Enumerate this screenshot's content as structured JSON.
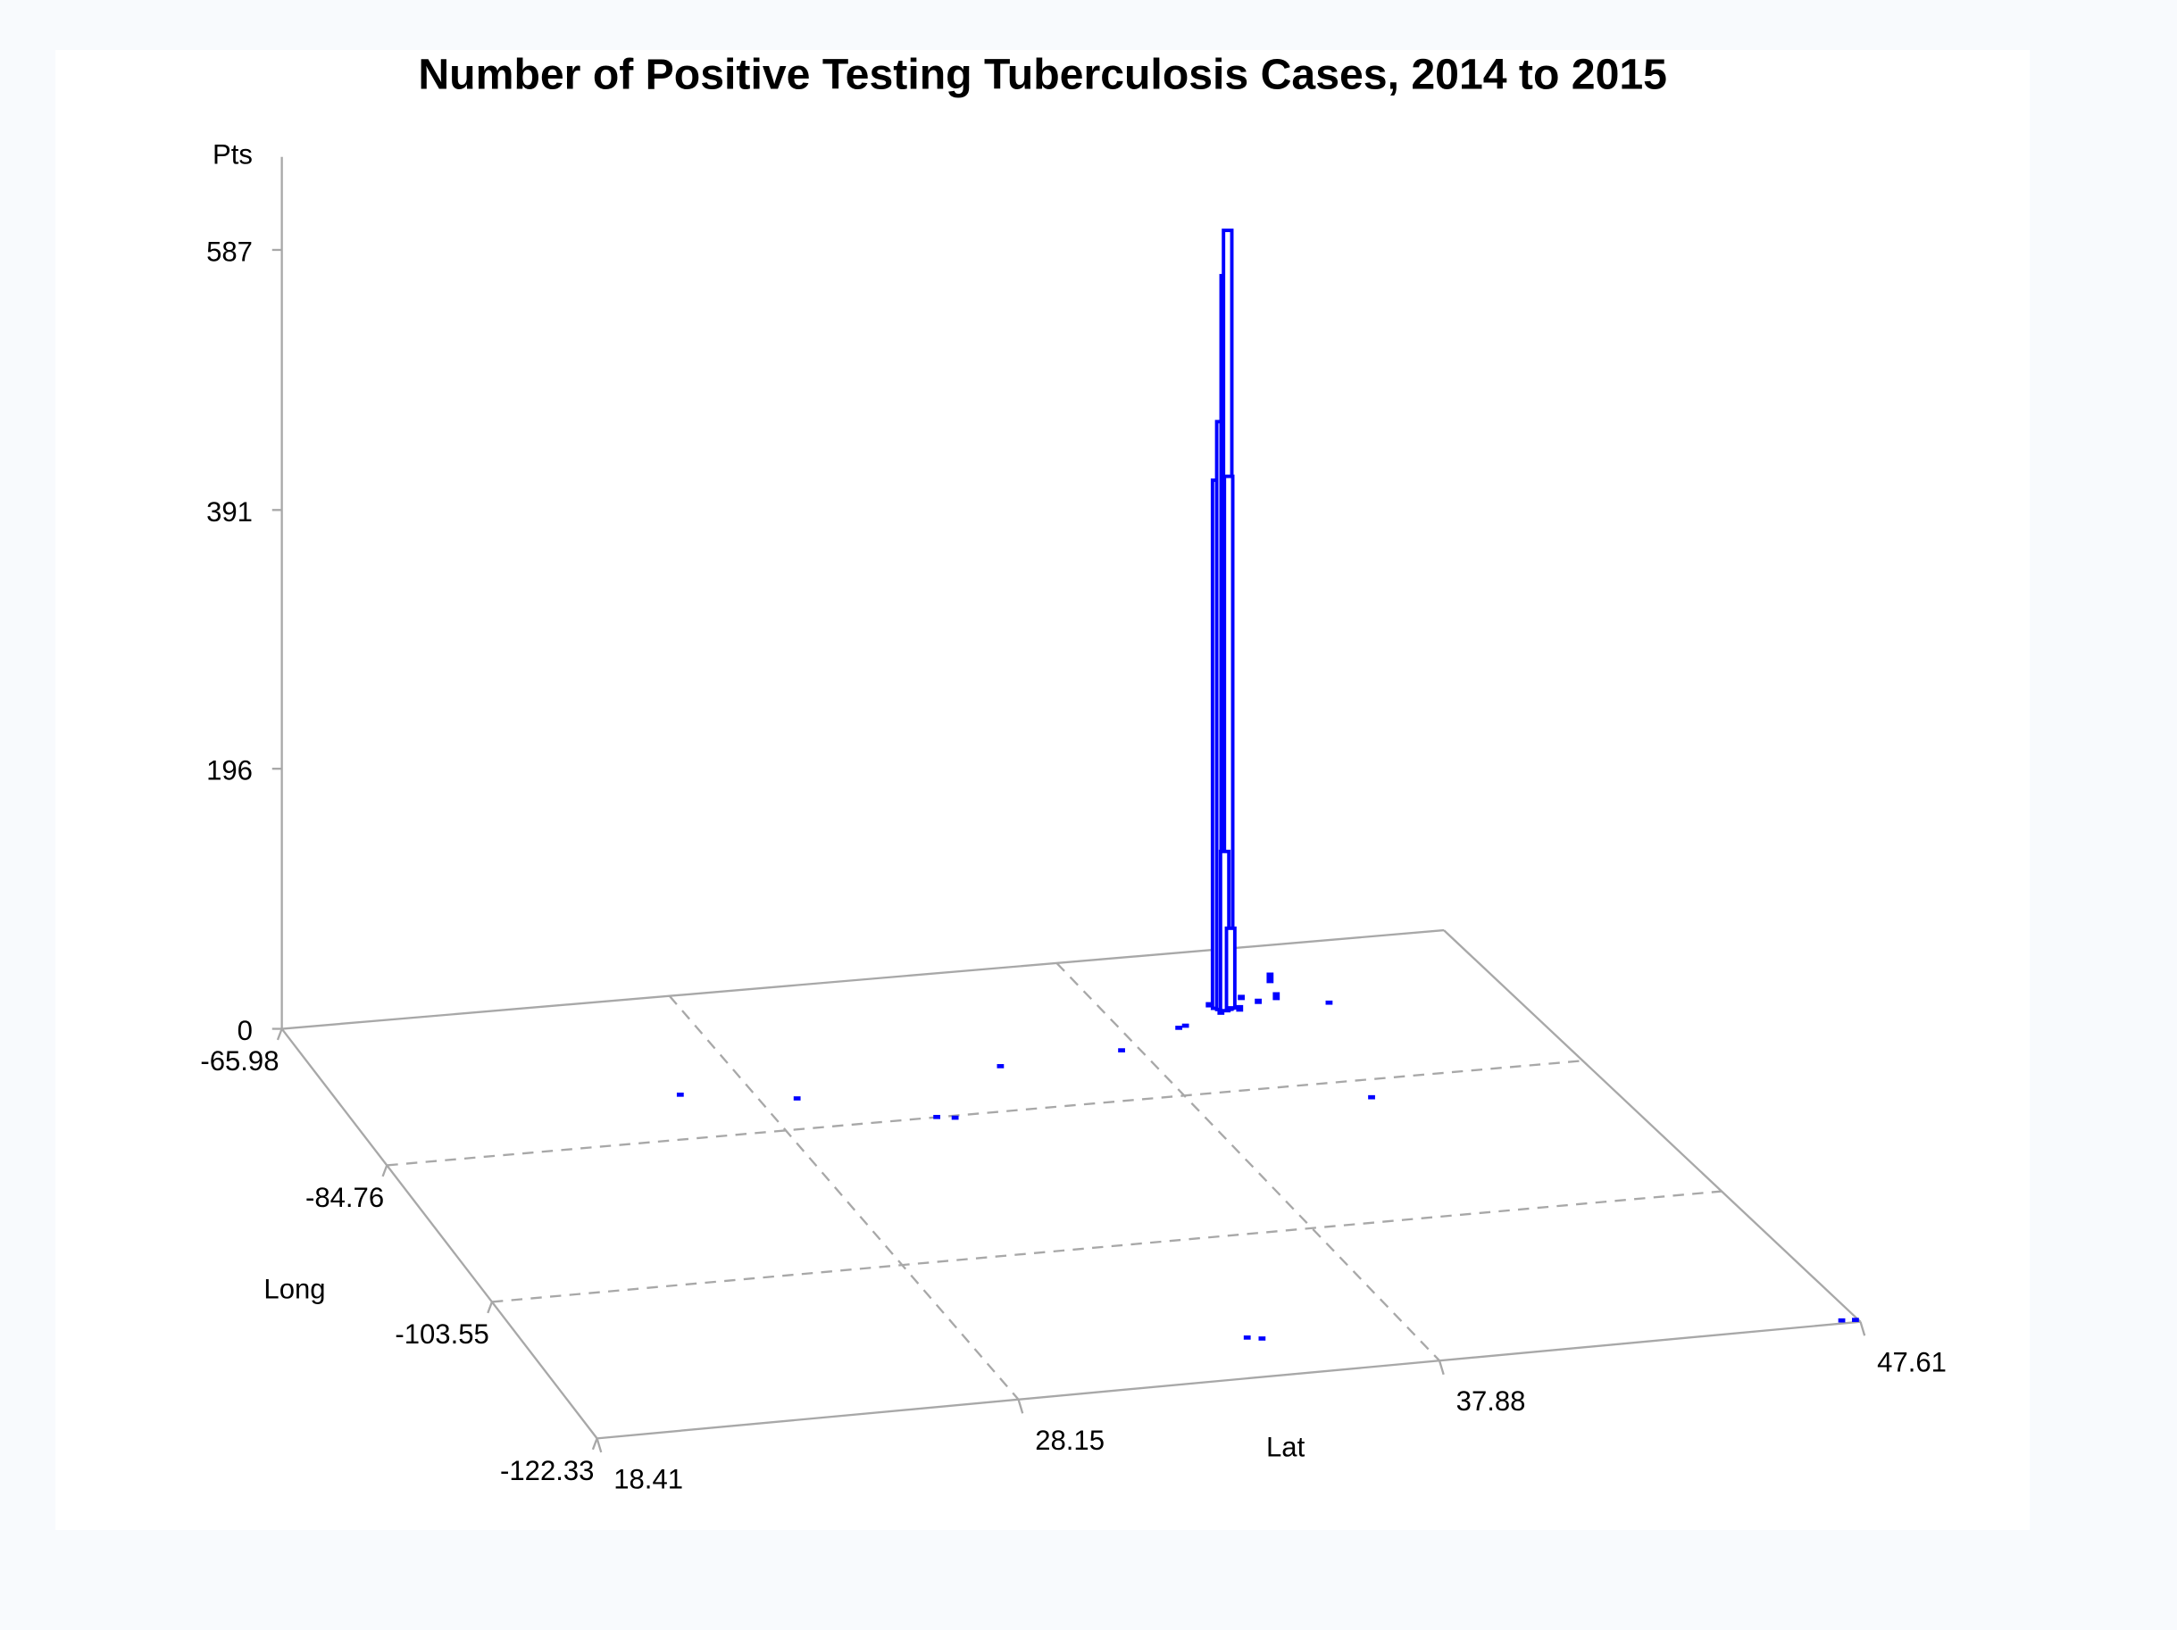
{
  "chart_data": {
    "type": "3d-needle",
    "title": "Number of Positive Testing Tuberculosis Cases, 2014 to 2015",
    "xlabel": "Lat",
    "ylabel": "Long",
    "zlabel": "Pts",
    "xlim": [
      18.41,
      47.61
    ],
    "ylim": [
      -65.98,
      -122.33
    ],
    "zlim": [
      0,
      587
    ],
    "x_ticks": [
      "18.41",
      "28.15",
      "37.88",
      "47.61"
    ],
    "y_ticks": [
      "-65.98",
      "-84.76",
      "-103.55",
      "-122.33"
    ],
    "z_ticks": [
      "0",
      "196",
      "391",
      "587"
    ],
    "grid": true,
    "color": "#0000ff",
    "bars": [
      {
        "lat": 40.55,
        "long": -73.7,
        "z": 398
      },
      {
        "lat": 40.62,
        "long": -73.9,
        "z": 443
      },
      {
        "lat": 40.72,
        "long": -73.95,
        "z": 553
      },
      {
        "lat": 40.78,
        "long": -73.95,
        "z": 587
      },
      {
        "lat": 40.82,
        "long": -73.85,
        "z": 401
      },
      {
        "lat": 40.68,
        "long": -74.1,
        "z": 120
      },
      {
        "lat": 40.88,
        "long": -73.8,
        "z": 60
      }
    ],
    "points": [
      {
        "lat": 26.4,
        "long": -79.2,
        "z": 2
      },
      {
        "lat": 29.0,
        "long": -81.0,
        "z": 2
      },
      {
        "lat": 34.3,
        "long": -79.1,
        "z": 2
      },
      {
        "lat": 31.8,
        "long": -85.0,
        "z": 2
      },
      {
        "lat": 32.2,
        "long": -85.3,
        "z": 2
      },
      {
        "lat": 37.4,
        "long": -78.4,
        "z": 2
      },
      {
        "lat": 39.2,
        "long": -76.1,
        "z": 3
      },
      {
        "lat": 39.4,
        "long": -75.9,
        "z": 3
      },
      {
        "lat": 40.4,
        "long": -73.5,
        "z": 4
      },
      {
        "lat": 40.5,
        "long": -74.6,
        "z": 3
      },
      {
        "lat": 41.0,
        "long": -74.4,
        "z": 5
      },
      {
        "lat": 41.6,
        "long": -73.6,
        "z": 4
      },
      {
        "lat": 42.1,
        "long": -73.3,
        "z": 6
      },
      {
        "lat": 42.35,
        "long": -71.0,
        "z": 8
      },
      {
        "lat": 41.3,
        "long": -72.9,
        "z": 4
      },
      {
        "lat": 43.2,
        "long": -74.5,
        "z": 2
      },
      {
        "lat": 42.0,
        "long": -87.4,
        "z": 3
      },
      {
        "lat": 34.2,
        "long": -117.3,
        "z": 3
      },
      {
        "lat": 34.5,
        "long": -117.6,
        "z": 2
      },
      {
        "lat": 47.2,
        "long": -122.2,
        "z": 2
      },
      {
        "lat": 47.5,
        "long": -122.3,
        "z": 2
      }
    ]
  }
}
